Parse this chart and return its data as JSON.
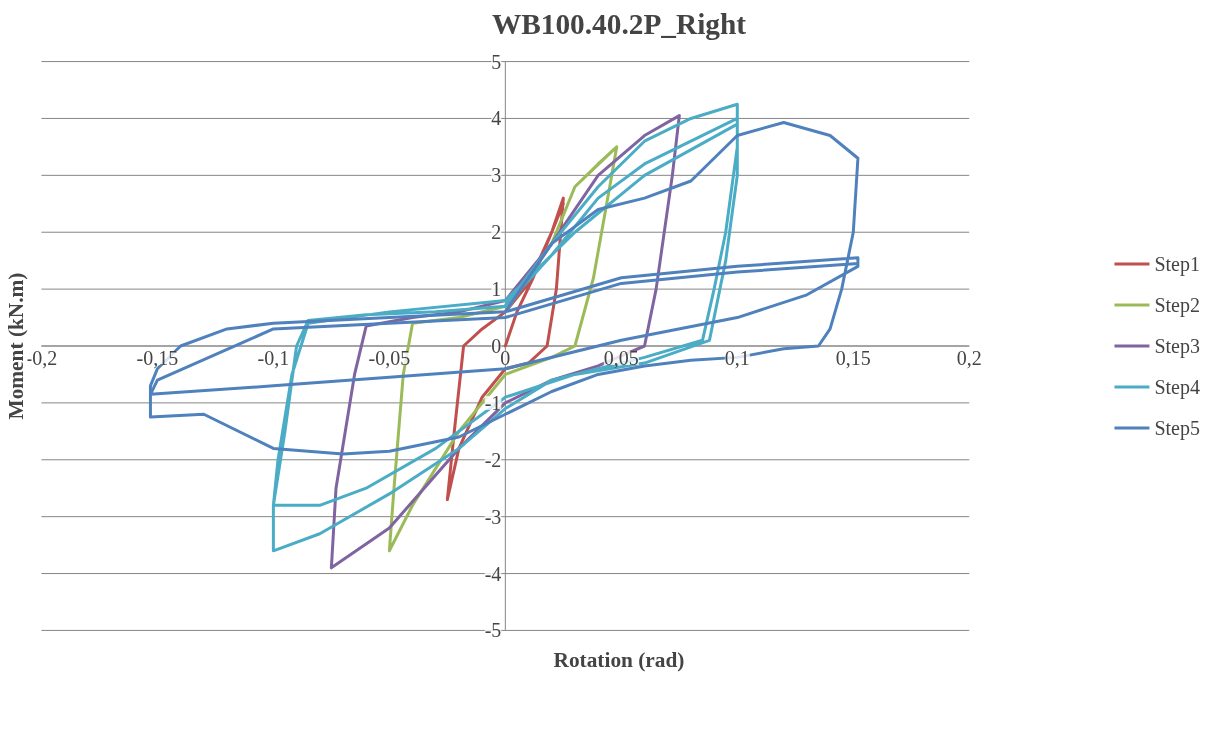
{
  "chart_data": {
    "type": "line",
    "title": "WB100.40.2P_Right",
    "xlabel": "Rotation (rad)",
    "ylabel": "Moment (kN.m)",
    "xlim": [
      -0.2,
      0.2
    ],
    "ylim": [
      -5,
      5
    ],
    "xticks": [
      {
        "value": -0.2,
        "label": "-0,2"
      },
      {
        "value": -0.15,
        "label": "-0,15"
      },
      {
        "value": -0.1,
        "label": "-0,1"
      },
      {
        "value": -0.05,
        "label": "-0,05"
      },
      {
        "value": 0,
        "label": "0"
      },
      {
        "value": 0.05,
        "label": "0,05"
      },
      {
        "value": 0.1,
        "label": "0,1"
      },
      {
        "value": 0.15,
        "label": "0,15"
      },
      {
        "value": 0.2,
        "label": "0,2"
      }
    ],
    "yticks": [
      -5,
      -4,
      -3,
      -2,
      -1,
      0,
      1,
      2,
      3,
      4,
      5
    ],
    "grid": "y",
    "legend": "right",
    "marker": "none",
    "line_style": "solid",
    "series": [
      {
        "name": "Step1",
        "color": "#c0504d",
        "x": [
          0,
          0.005,
          0.012,
          0.02,
          0.025,
          0.022,
          0.018,
          0.01,
          0,
          -0.01,
          -0.02,
          -0.025,
          -0.022,
          -0.018,
          -0.01,
          0,
          0.01,
          0.02,
          0.025
        ],
        "values": [
          0,
          0.6,
          1.2,
          2.0,
          2.6,
          1.0,
          0,
          -0.3,
          -0.4,
          -0.9,
          -1.8,
          -2.7,
          -1.5,
          0,
          0.3,
          0.6,
          1.1,
          2.0,
          2.5
        ]
      },
      {
        "name": "Step2",
        "color": "#9bbb59",
        "x": [
          0,
          0.02,
          0.03,
          0.04,
          0.048,
          0.045,
          0.038,
          0.03,
          0.02,
          0,
          -0.02,
          -0.04,
          -0.05,
          -0.048,
          -0.044,
          -0.04,
          -0.02,
          0,
          0.02,
          0.03,
          0.048
        ],
        "values": [
          0.6,
          1.8,
          2.8,
          3.2,
          3.5,
          2.8,
          1.2,
          0,
          -0.2,
          -0.5,
          -1.5,
          -2.8,
          -3.6,
          -2.5,
          -0.5,
          0.4,
          0.5,
          0.7,
          1.8,
          2.8,
          3.5
        ]
      },
      {
        "name": "Step3",
        "color": "#8064a2",
        "x": [
          0,
          0.02,
          0.04,
          0.06,
          0.075,
          0.072,
          0.065,
          0.06,
          0.04,
          0.02,
          0,
          -0.02,
          -0.05,
          -0.075,
          -0.073,
          -0.065,
          -0.06,
          -0.04,
          -0.02,
          0,
          0.02,
          0.04,
          0.06,
          0.075
        ],
        "values": [
          0.7,
          1.8,
          3.0,
          3.7,
          4.05,
          3.0,
          1.0,
          0,
          -0.35,
          -0.6,
          -1.0,
          -1.8,
          -3.2,
          -3.9,
          -2.5,
          -0.5,
          0.35,
          0.5,
          0.6,
          0.8,
          1.8,
          3.0,
          3.7,
          4.05
        ]
      },
      {
        "name": "Step4",
        "color": "#4bacc6",
        "x": [
          0,
          0.02,
          0.04,
          0.06,
          0.08,
          0.1,
          0.1,
          0.095,
          0.09,
          0.085,
          0.06,
          0.04,
          0.02,
          0,
          -0.02,
          -0.05,
          -0.08,
          -0.1,
          -0.1,
          -0.095,
          -0.09,
          -0.085,
          -0.06,
          -0.03,
          0,
          0.02,
          0.04,
          0.06,
          0.08,
          0.1,
          0.1,
          0.095,
          0.088,
          0.06,
          0.03,
          0,
          -0.03,
          -0.06,
          -0.08,
          -0.1,
          -0.098,
          -0.092,
          -0.085,
          -0.05,
          0,
          0.03,
          0.06,
          0.1
        ],
        "values": [
          0.7,
          1.8,
          2.8,
          3.6,
          4.0,
          4.25,
          3.5,
          2.0,
          1.0,
          0.1,
          -0.2,
          -0.4,
          -0.6,
          -1.1,
          -1.8,
          -2.6,
          -3.3,
          -3.6,
          -2.8,
          -1.5,
          0,
          0.45,
          0.55,
          0.6,
          0.7,
          1.6,
          2.6,
          3.2,
          3.6,
          4.0,
          3.0,
          1.5,
          0.1,
          -0.3,
          -0.5,
          -0.9,
          -1.8,
          -2.5,
          -2.8,
          -2.8,
          -2.0,
          -0.5,
          0.4,
          0.6,
          0.8,
          2.0,
          3.0,
          3.9
        ]
      },
      {
        "name": "Step5",
        "color": "#4f81bd",
        "x": [
          0,
          0.02,
          0.04,
          0.06,
          0.08,
          0.1,
          0.12,
          0.14,
          0.152,
          0.15,
          0.145,
          0.14,
          0.135,
          0.12,
          0.1,
          0.08,
          0.06,
          0.04,
          0.02,
          0,
          -0.02,
          -0.05,
          -0.07,
          -0.1,
          -0.13,
          -0.153,
          -0.153,
          -0.15,
          -0.14,
          -0.12,
          -0.1,
          -0.05,
          0,
          0.05,
          0.1,
          0.152,
          0.152,
          0.13,
          0.1,
          0.05,
          0,
          -0.05,
          -0.1,
          -0.153,
          -0.15,
          -0.1,
          -0.05,
          0,
          0.05,
          0.1,
          0.152
        ],
        "values": [
          0.6,
          1.8,
          2.4,
          2.6,
          2.9,
          3.7,
          3.93,
          3.7,
          3.3,
          2.0,
          1.0,
          0.3,
          0,
          -0.05,
          -0.2,
          -0.25,
          -0.35,
          -0.5,
          -0.8,
          -1.2,
          -1.6,
          -1.85,
          -1.9,
          -1.8,
          -1.2,
          -1.25,
          -0.7,
          -0.4,
          0,
          0.3,
          0.4,
          0.5,
          0.6,
          1.2,
          1.4,
          1.55,
          1.4,
          0.9,
          0.5,
          0.1,
          -0.4,
          -0.55,
          -0.7,
          -0.85,
          -0.6,
          0.3,
          0.4,
          0.5,
          1.1,
          1.3,
          1.45
        ]
      }
    ]
  }
}
